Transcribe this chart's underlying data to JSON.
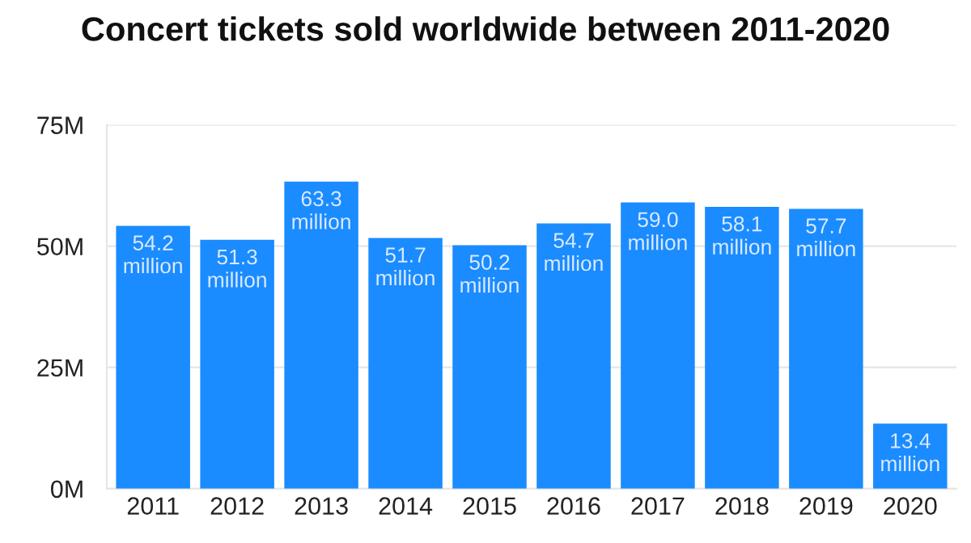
{
  "chart_data": {
    "type": "bar",
    "title": "Concert tickets sold worldwide between 2011-2020",
    "categories": [
      "2011",
      "2012",
      "2013",
      "2014",
      "2015",
      "2016",
      "2017",
      "2018",
      "2019",
      "2020"
    ],
    "values": [
      54200000,
      51300000,
      63300000,
      51700000,
      50200000,
      54700000,
      59000000,
      58100000,
      57700000,
      13400000
    ],
    "value_labels": [
      "54.2\nmillion",
      "51.3\nmillion",
      "63.3\nmillion",
      "51.7\nmillion",
      "50.2\nmillion",
      "54.7\nmillion",
      "59.0\nmillion",
      "58.1\nmillion",
      "57.7\nmillion",
      "13.4\nmillion"
    ],
    "color": "#1a8cff",
    "ylim": [
      0,
      75000000
    ],
    "yticks": [
      {
        "value": 0,
        "label": "0M"
      },
      {
        "value": 25000000,
        "label": "25M"
      },
      {
        "value": 50000000,
        "label": "50M"
      },
      {
        "value": 75000000,
        "label": "75M"
      }
    ],
    "grid": "y"
  }
}
